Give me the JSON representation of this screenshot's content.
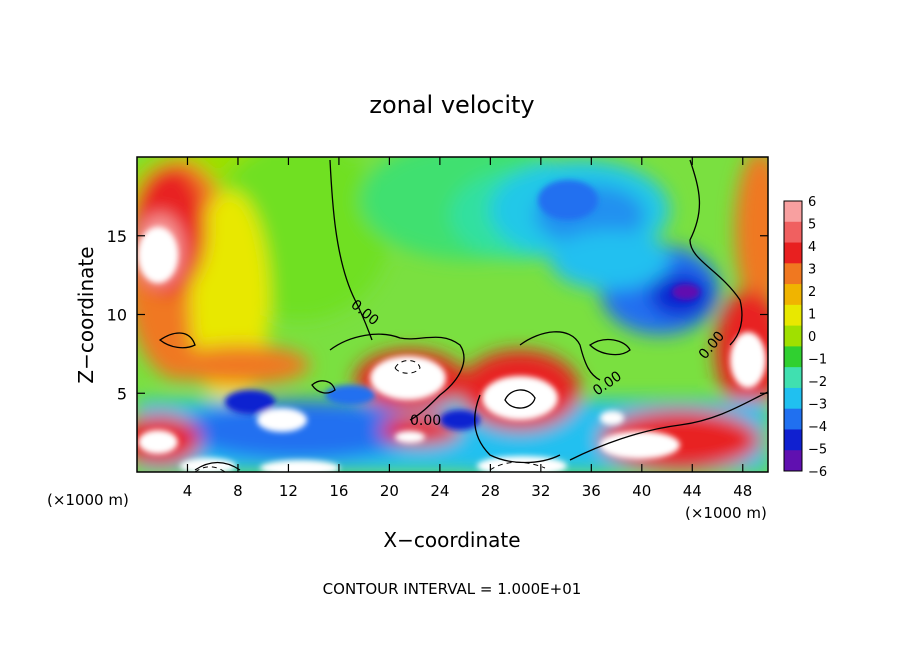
{
  "chart_data": {
    "type": "heatmap",
    "title": "zonal velocity",
    "xlabel": "X−coordinate",
    "ylabel": "Z−coordinate",
    "x_unit_note": "(×1000 m)",
    "y_unit_note": "(×1000 m)",
    "xlim": [
      0,
      50
    ],
    "ylim": [
      0,
      20
    ],
    "x_ticks": [
      4,
      8,
      12,
      16,
      20,
      24,
      28,
      32,
      36,
      40,
      44,
      48
    ],
    "y_ticks": [
      5,
      10,
      15
    ],
    "colorbar": {
      "ticks": [
        "6",
        "5",
        "4",
        "3",
        "2",
        "1",
        "0",
        "−1",
        "−2",
        "−3",
        "−4",
        "−5",
        "−6"
      ],
      "colors": [
        "#f8a0a0",
        "#f06060",
        "#e82020",
        "#f07820",
        "#f0b400",
        "#e8e800",
        "#a0e000",
        "#30d030",
        "#40e0b0",
        "#20c0f0",
        "#2070f0",
        "#1020d0",
        "#6010b0"
      ],
      "above_max_color": "#ffffff"
    },
    "contour_labels": [
      "0.00",
      "0.00",
      "0.00",
      "0.00"
    ],
    "footnote": "CONTOUR INTERVAL = 1.000E+01",
    "grid": false,
    "legend": "colorbar right"
  }
}
